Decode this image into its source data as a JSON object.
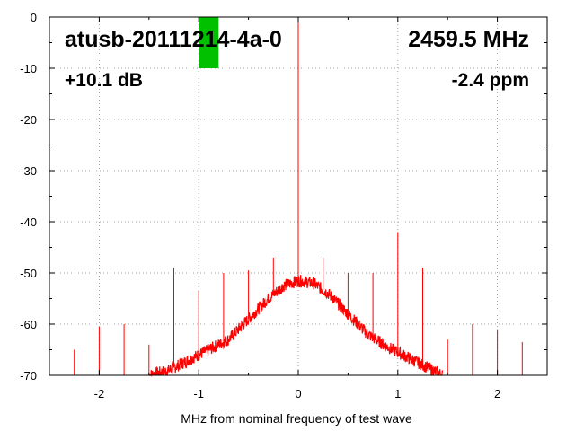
{
  "chart_data": {
    "type": "line",
    "title": "atusb-20111214-4a-0",
    "title_right": "2459.5 MHz",
    "annotation_left": "+10.1 dB",
    "annotation_right": "-2.4 ppm",
    "xlabel": "MHz from nominal frequency of test wave",
    "ylabel": "",
    "xlim": [
      -2.5,
      2.5
    ],
    "ylim": [
      -70,
      0
    ],
    "x_ticks": [
      -2,
      -1,
      0,
      1,
      2
    ],
    "x_tick_labels": [
      "-2",
      "-1",
      "0",
      "1",
      "2"
    ],
    "y_ticks": [
      0,
      -10,
      -20,
      -30,
      -40,
      -50,
      -60,
      -70
    ],
    "y_tick_labels": [
      "0",
      "-10",
      "-20",
      "-30",
      "-40",
      "-50",
      "-60",
      "-70"
    ],
    "grid": true,
    "series": [
      {
        "color": "#ff0000",
        "noise_envelope": {
          "x": [
            -1.5,
            -1.3,
            -1.1,
            -0.9,
            -0.7,
            -0.5,
            -0.3,
            -0.15,
            0.0,
            0.15,
            0.3,
            0.5,
            0.7,
            0.9,
            1.1,
            1.3,
            1.45
          ],
          "y": [
            -70,
            -69,
            -67,
            -65,
            -63,
            -59,
            -55,
            -52.5,
            -51.5,
            -52,
            -54,
            -58,
            -62,
            -64.5,
            -66.5,
            -68.5,
            -70
          ]
        },
        "spurs": [
          {
            "x": -2.25,
            "y": -65
          },
          {
            "x": -2.0,
            "y": -60.5
          },
          {
            "x": -1.75,
            "y": -60
          },
          {
            "x": -1.5,
            "y": -64
          },
          {
            "x": -1.25,
            "y": -49
          },
          {
            "x": -1.0,
            "y": -53.5
          },
          {
            "x": -0.75,
            "y": -50
          },
          {
            "x": -0.5,
            "y": -49.5
          },
          {
            "x": -0.25,
            "y": -47
          },
          {
            "x": 0.0,
            "y": 0
          },
          {
            "x": 0.25,
            "y": -47
          },
          {
            "x": 0.5,
            "y": -50
          },
          {
            "x": 0.75,
            "y": -50
          },
          {
            "x": 1.0,
            "y": -42
          },
          {
            "x": 1.25,
            "y": -49
          },
          {
            "x": 1.5,
            "y": -63
          },
          {
            "x": 1.75,
            "y": -60
          },
          {
            "x": 2.0,
            "y": -61
          },
          {
            "x": 2.25,
            "y": -63.5
          },
          {
            "x": 2.5,
            "y": -67
          }
        ]
      }
    ],
    "marker": {
      "x": -0.9,
      "y_top": 0,
      "y_bottom": -10,
      "color": "#00c000"
    }
  }
}
